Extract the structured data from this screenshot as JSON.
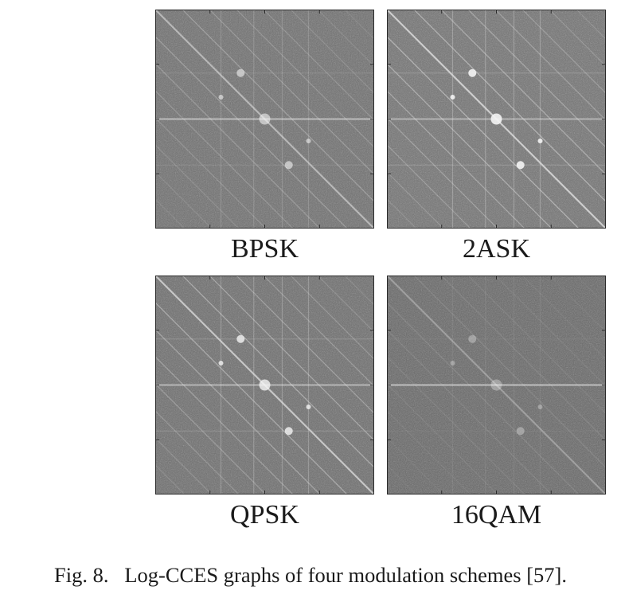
{
  "figure": {
    "caption": "Fig. 8.   Log-CCES graphs of four modulation schemes [57].",
    "panels": [
      {
        "label": "BPSK",
        "style": {
          "base": "#6e6e6e",
          "diag": 0.35,
          "line": 0.55,
          "spot": 0.6
        }
      },
      {
        "label": "2ASK",
        "style": {
          "base": "#727272",
          "diag": 0.55,
          "line": 0.45,
          "spot": 0.9
        }
      },
      {
        "label": "QPSK",
        "style": {
          "base": "#6c6c6c",
          "diag": 0.5,
          "line": 0.5,
          "spot": 0.8
        }
      },
      {
        "label": "16QAM",
        "style": {
          "base": "#666666",
          "diag": 0.15,
          "line": 0.6,
          "spot": 0.35
        }
      }
    ]
  }
}
